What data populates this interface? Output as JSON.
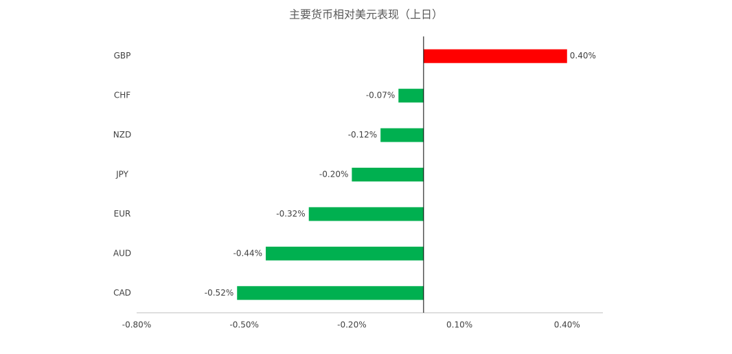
{
  "chart_data": {
    "type": "hbar",
    "title": "主要货币相对美元表现（上日）",
    "categories": [
      "GBP",
      "CHF",
      "NZD",
      "JPY",
      "EUR",
      "AUD",
      "CAD"
    ],
    "values": [
      0.4,
      -0.07,
      -0.12,
      -0.2,
      -0.32,
      -0.44,
      -0.52
    ],
    "value_labels": [
      "0.40%",
      "-0.07%",
      "-0.12%",
      "-0.20%",
      "-0.32%",
      "-0.44%",
      "-0.52%"
    ],
    "colors": [
      "#ff0000",
      "#00b050",
      "#00b050",
      "#00b050",
      "#00b050",
      "#00b050",
      "#00b050"
    ],
    "xlim": [
      -0.8,
      0.5
    ],
    "xticks": [
      {
        "value": -0.8,
        "label": "-0.80%"
      },
      {
        "value": -0.5,
        "label": "-0.50%"
      },
      {
        "value": -0.2,
        "label": "-0.20%"
      },
      {
        "value": 0.1,
        "label": "0.10%"
      },
      {
        "value": 0.4,
        "label": "0.40%"
      }
    ]
  }
}
